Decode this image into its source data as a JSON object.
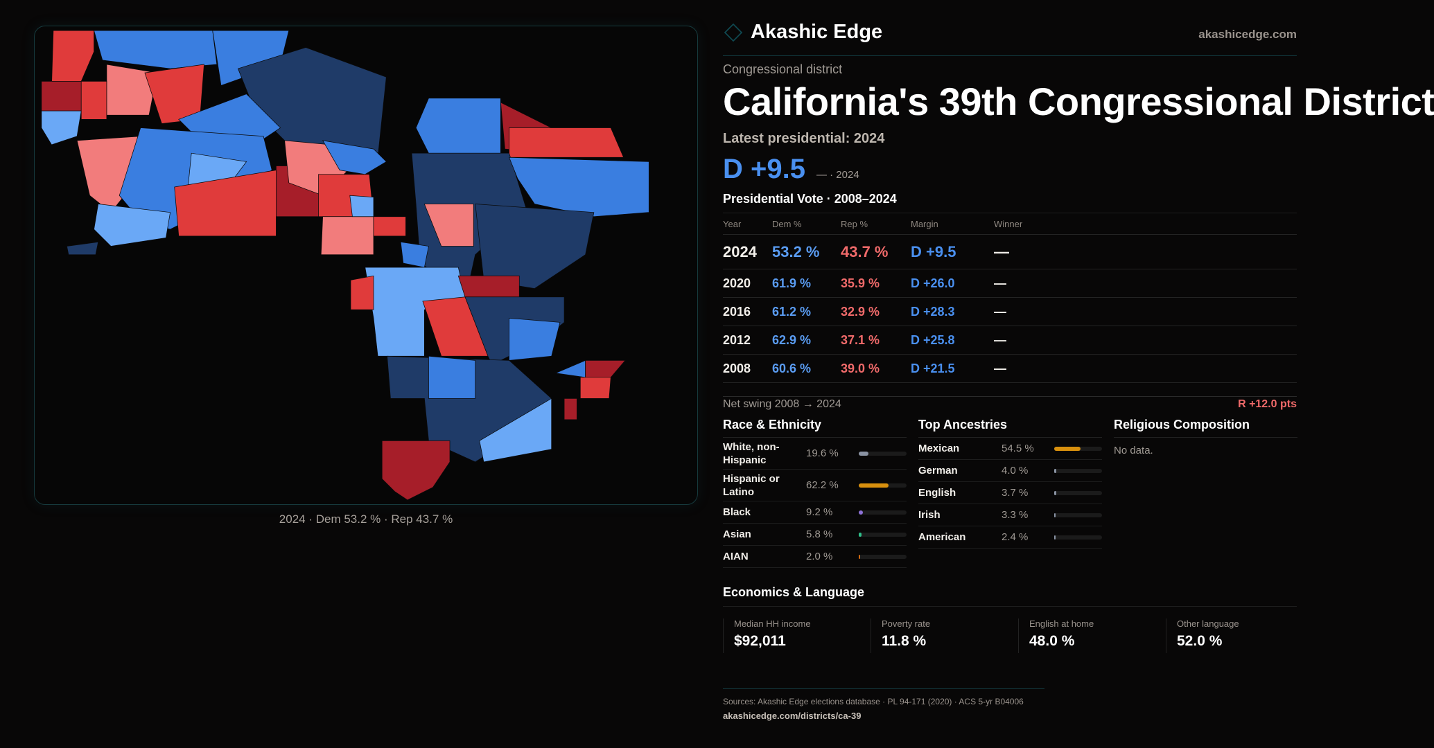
{
  "brand": {
    "name": "Akashic Edge",
    "site": "akashicedge.com",
    "icon": "diamond-logo-icon"
  },
  "kicker": "Congressional district",
  "title": "California's 39th Congressional District",
  "latest_label": "Latest presidential: 2024",
  "headline_margin": {
    "value": "D +9.5",
    "sub": "— · 2024"
  },
  "colors": {
    "dem": "#4a90f0",
    "rep": "#f06a6a",
    "accent": "#123a40"
  },
  "vote_section": "Presidential Vote · 2008–2024",
  "vote_table": {
    "headers": [
      "Year",
      "Dem %",
      "Rep %",
      "Margin",
      "Winner"
    ],
    "rows": [
      [
        "2024",
        "53.2 %",
        "43.7 %",
        "D +9.5",
        "—"
      ],
      [
        "2020",
        "61.9 %",
        "35.9 %",
        "D +26.0",
        "—"
      ],
      [
        "2016",
        "61.2 %",
        "32.9 %",
        "D +28.3",
        "—"
      ],
      [
        "2012",
        "62.9 %",
        "37.1 %",
        "D +25.8",
        "—"
      ],
      [
        "2008",
        "60.6 %",
        "39.0 %",
        "D +21.5",
        "—"
      ]
    ]
  },
  "net_swing": {
    "label": "Net swing 2008 → 2024",
    "value": "R +12.0 pts"
  },
  "race": {
    "title": "Race & Ethnicity",
    "rows": [
      {
        "label": "White, non-Hispanic",
        "value": "19.6 %",
        "pct": 19.6,
        "color": "#8a93a3"
      },
      {
        "label": "Hispanic or Latino",
        "value": "62.2 %",
        "pct": 62.2,
        "color": "#d8900e"
      },
      {
        "label": "Black",
        "value": "9.2 %",
        "pct": 9.2,
        "color": "#8e72d8"
      },
      {
        "label": "Asian",
        "value": "5.8 %",
        "pct": 5.8,
        "color": "#2fbf8a"
      },
      {
        "label": "AIAN",
        "value": "2.0 %",
        "pct": 2.0,
        "color": "#d06a12"
      }
    ]
  },
  "ancestry": {
    "title": "Top Ancestries",
    "rows": [
      {
        "label": "Mexican",
        "value": "54.5 %",
        "pct": 54.5,
        "color": "#d8900e"
      },
      {
        "label": "German",
        "value": "4.0 %",
        "pct": 4.0,
        "color": "#8a93a3"
      },
      {
        "label": "English",
        "value": "3.7 %",
        "pct": 3.7,
        "color": "#8a93a3"
      },
      {
        "label": "Irish",
        "value": "3.3 %",
        "pct": 3.3,
        "color": "#8a93a3"
      },
      {
        "label": "American",
        "value": "2.4 %",
        "pct": 2.4,
        "color": "#8a93a3"
      }
    ]
  },
  "religion": {
    "title": "Religious Composition",
    "empty": "No data."
  },
  "economics": {
    "title": "Economics & Language",
    "stats": [
      {
        "label": "Median HH income",
        "value": "$92,011"
      },
      {
        "label": "Poverty rate",
        "value": "11.8 %"
      },
      {
        "label": "English at home",
        "value": "48.0 %"
      },
      {
        "label": "Other language",
        "value": "52.0 %"
      }
    ]
  },
  "map": {
    "caption": "2024 · Dem 53.2 % · Rep 43.7 %",
    "palette": {
      "navy": "#1f3b68",
      "blue": "#3a7ee0",
      "lightblue": "#6aa8f6",
      "red": "#e03b3b",
      "darkred": "#a61e29",
      "salmon": "#f27c7c"
    }
  },
  "footer": {
    "sources": "Sources: Akashic Edge elections database · PL 94-171 (2020) · ACS 5-yr B04006",
    "link": "akashicedge.com/districts/ca-39"
  }
}
